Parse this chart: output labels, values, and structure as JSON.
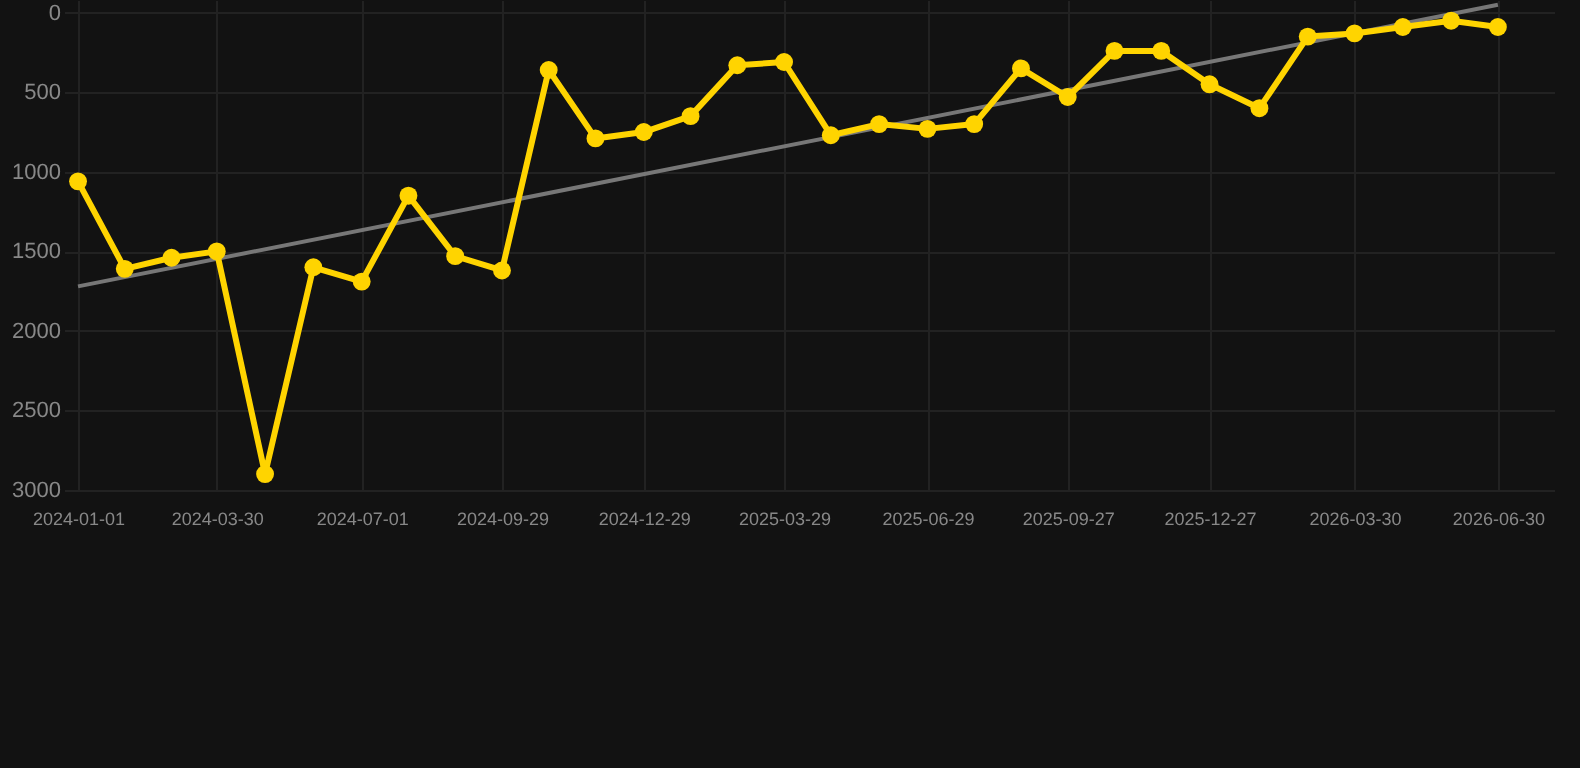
{
  "chart_data": {
    "type": "line",
    "x": [
      "2024-01-01",
      "2024-01-31",
      "2024-03-01",
      "2024-03-30",
      "2024-04-30",
      "2024-05-31",
      "2024-07-01",
      "2024-07-31",
      "2024-08-30",
      "2024-09-29",
      "2024-10-29",
      "2024-11-28",
      "2024-12-29",
      "2025-01-28",
      "2025-02-27",
      "2025-03-29",
      "2025-04-28",
      "2025-05-29",
      "2025-06-29",
      "2025-07-29",
      "2025-08-28",
      "2025-09-27",
      "2025-10-27",
      "2025-11-26",
      "2025-12-27",
      "2026-01-28",
      "2026-02-28",
      "2026-03-30",
      "2026-04-30",
      "2026-05-31",
      "2026-06-30"
    ],
    "series": [
      {
        "color": "#ffd400",
        "marker": "circle",
        "values": [
          1060,
          1610,
          1540,
          1500,
          2900,
          1600,
          1690,
          1150,
          1530,
          1620,
          360,
          790,
          750,
          650,
          330,
          310,
          770,
          700,
          730,
          700,
          350,
          530,
          240,
          240,
          450,
          600,
          150,
          130,
          90,
          50,
          90
        ]
      },
      {
        "type": "line",
        "color": "#777777",
        "marker": "none",
        "x": [
          "2024-01-01",
          "2026-06-30"
        ],
        "values": [
          1720,
          -50
        ]
      }
    ],
    "xlim": [
      "2023-12-23",
      "2026-08-05"
    ],
    "ylim": [
      3000,
      -80
    ],
    "xticks": [
      "2024-01-01",
      "2024-03-30",
      "2024-07-01",
      "2024-09-29",
      "2024-12-29",
      "2025-03-29",
      "2025-06-29",
      "2025-09-27",
      "2025-12-27",
      "2026-03-30",
      "2026-06-30"
    ],
    "yticks": [
      0,
      500,
      1000,
      1500,
      2000,
      2500,
      3000
    ],
    "grid": true
  }
}
